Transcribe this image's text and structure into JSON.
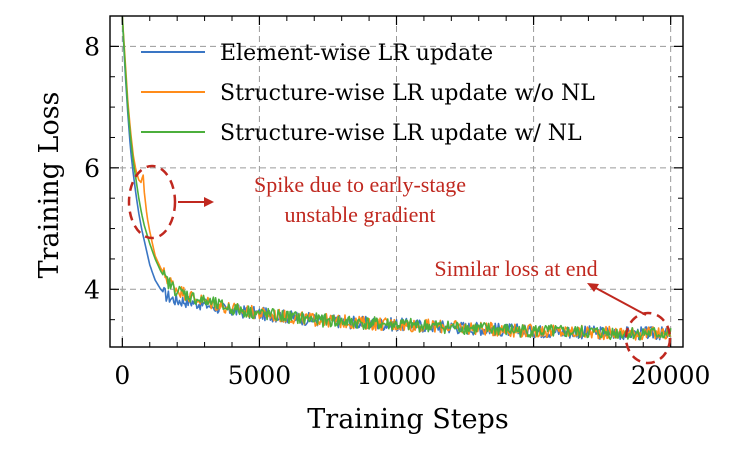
{
  "chart_data": {
    "type": "line",
    "xlabel": "Training Steps",
    "ylabel": "Training Loss",
    "xlim": [
      -450,
      20450
    ],
    "ylim": [
      3.05,
      8.5
    ],
    "xticks": [
      0,
      5000,
      10000,
      15000,
      20000
    ],
    "xtick_labels": [
      "0",
      "5000",
      "10000",
      "15000",
      "20000"
    ],
    "yticks": [
      4,
      6,
      8
    ],
    "ytick_labels": [
      "4",
      "6",
      "8"
    ],
    "grid": true,
    "grid_style": "dashed",
    "legend_position": "top-right",
    "series": [
      {
        "name": "Element-wise LR update",
        "color": "#3a76c4",
        "x": [
          0,
          100,
          200,
          300,
          400,
          500,
          600,
          700,
          800,
          900,
          1000,
          1200,
          1400,
          1600,
          1800,
          2000,
          2500,
          3000,
          4000,
          5000,
          6000,
          7000,
          8000,
          9000,
          10000,
          12000,
          14000,
          16000,
          18000,
          20000
        ],
        "values": [
          8.5,
          7.6,
          6.9,
          6.3,
          5.9,
          5.55,
          5.25,
          5.0,
          4.8,
          4.6,
          4.4,
          4.15,
          4.0,
          3.9,
          3.85,
          3.82,
          3.8,
          3.75,
          3.65,
          3.6,
          3.55,
          3.5,
          3.47,
          3.44,
          3.42,
          3.38,
          3.33,
          3.3,
          3.28,
          3.27
        ]
      },
      {
        "name": "Structure-wise LR update w/o NL",
        "color": "#ff8c1a",
        "x": [
          0,
          100,
          200,
          300,
          400,
          500,
          600,
          700,
          750,
          800,
          900,
          1000,
          1200,
          1400,
          1600,
          1800,
          2000,
          2500,
          3000,
          4000,
          5000,
          6000,
          7000,
          8000,
          9000,
          10000,
          12000,
          14000,
          16000,
          18000,
          20000
        ],
        "values": [
          8.5,
          7.8,
          7.1,
          6.6,
          6.2,
          5.95,
          5.8,
          5.75,
          5.95,
          5.6,
          5.2,
          4.95,
          4.55,
          4.35,
          4.2,
          4.1,
          4.0,
          3.88,
          3.8,
          3.68,
          3.6,
          3.55,
          3.5,
          3.47,
          3.44,
          3.42,
          3.38,
          3.33,
          3.3,
          3.28,
          3.27
        ]
      },
      {
        "name": "Structure-wise LR update w/ NL",
        "color": "#4caf3c",
        "x": [
          0,
          100,
          200,
          300,
          400,
          500,
          600,
          700,
          800,
          900,
          1000,
          1200,
          1400,
          1600,
          1800,
          2000,
          2500,
          3000,
          4000,
          5000,
          6000,
          7000,
          8000,
          9000,
          10000,
          12000,
          14000,
          16000,
          18000,
          20000
        ],
        "values": [
          8.5,
          7.7,
          7.0,
          6.5,
          6.1,
          5.8,
          5.5,
          5.25,
          5.05,
          4.9,
          4.75,
          4.5,
          4.3,
          4.15,
          4.05,
          3.98,
          3.88,
          3.8,
          3.68,
          3.6,
          3.55,
          3.5,
          3.47,
          3.44,
          3.42,
          3.38,
          3.33,
          3.3,
          3.28,
          3.27
        ]
      }
    ],
    "annotations": [
      {
        "text_line1": "Spike due to early-stage",
        "text_line2": "unstable gradient",
        "color": "#c0281f"
      },
      {
        "text": "Similar loss at end",
        "color": "#c0281f"
      }
    ]
  }
}
